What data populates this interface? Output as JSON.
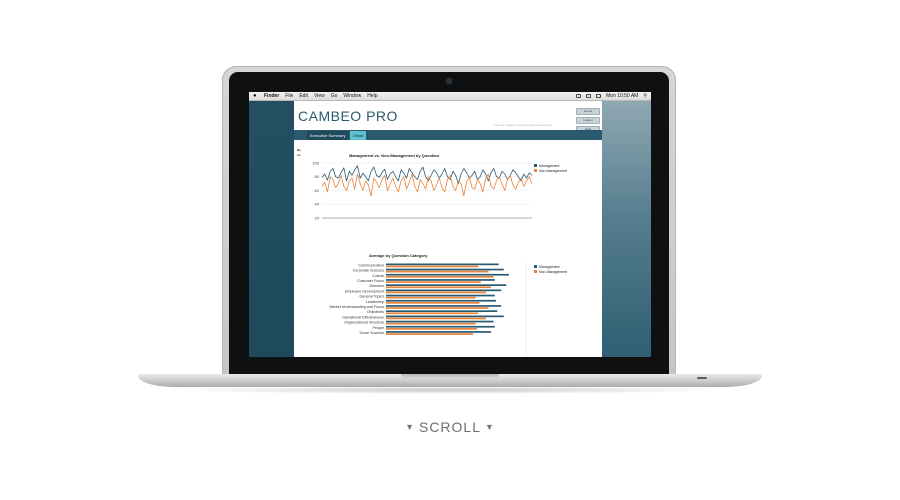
{
  "menubar": {
    "apple_icon": "apple-icon",
    "items": [
      "Finder",
      "File",
      "Edit",
      "View",
      "Go",
      "Window",
      "Help"
    ],
    "clock": "Mon 10:50 AM"
  },
  "app": {
    "title": "CAMBEO PRO",
    "logged_in_text": "You are logged in as frances@cambeo.com",
    "buttons": [
      "Home",
      "Logout",
      "Help"
    ],
    "tabs": [
      "Executive Summary",
      "Detail"
    ],
    "active_tab": "Detail",
    "side_labels": [
      "By",
      "Av"
    ]
  },
  "colors": {
    "management": "#2a5a70",
    "non_management": "#e8843c",
    "panel_dark": "#1f4a5c",
    "tab_active": "#5fc1cf"
  },
  "chart_data": [
    {
      "type": "line",
      "title": "Management vs. Non-Management by Question",
      "y_ticks": [
        20,
        40,
        60,
        80,
        100
      ],
      "ylim": [
        20,
        100
      ],
      "grid": true,
      "legend_position": "right",
      "series": [
        {
          "name": "Management",
          "color": "#2a5a70",
          "values": [
            79,
            84,
            75,
            88,
            92,
            80,
            78,
            86,
            93,
            74,
            88,
            82,
            90,
            96,
            78,
            85,
            80,
            74,
            88,
            94,
            82,
            79,
            86,
            91,
            76,
            84,
            88,
            80,
            74,
            90,
            85,
            78,
            92,
            86,
            80,
            76,
            88,
            94,
            80,
            74,
            82,
            90,
            86,
            78,
            84,
            92,
            80,
            76,
            88,
            82,
            70,
            84,
            92,
            86,
            78,
            82,
            88,
            76,
            80,
            90,
            84,
            74,
            86,
            92,
            80,
            78,
            88,
            84,
            76,
            82,
            90,
            86,
            80,
            74,
            84,
            78,
            86,
            82
          ]
        },
        {
          "name": "Non-Management",
          "color": "#e8843c",
          "values": [
            66,
            72,
            58,
            80,
            76,
            64,
            70,
            82,
            66,
            60,
            74,
            78,
            62,
            84,
            70,
            60,
            74,
            68,
            52,
            78,
            72,
            64,
            76,
            82,
            60,
            70,
            78,
            66,
            58,
            74,
            80,
            62,
            72,
            84,
            66,
            58,
            76,
            70,
            62,
            80,
            74,
            60,
            68,
            78,
            64,
            58,
            76,
            82,
            66,
            60,
            74,
            70,
            52,
            72,
            80,
            64,
            62,
            76,
            70,
            58,
            78,
            84,
            66,
            62,
            74,
            80,
            70,
            60,
            76,
            82,
            68,
            62,
            72,
            78,
            66,
            74,
            80,
            70
          ]
        }
      ]
    },
    {
      "type": "bar",
      "orientation": "horizontal",
      "title": "Average by Question Category",
      "legend_position": "right",
      "categories": [
        "Communication",
        "Corporate Success",
        "Culture",
        "Customer Focus",
        "Direction",
        "Employee Development",
        "General Topics",
        "Leadership",
        "Market Understanding and Focus",
        "Objectives",
        "Operational Effectiveness",
        "Organizational Structure",
        "People",
        "Score Success"
      ],
      "xlim": [
        0,
        100
      ],
      "series": [
        {
          "name": "Management",
          "color": "#2a5a70",
          "values": [
            88,
            92,
            96,
            85,
            94,
            90,
            85,
            86,
            90,
            87,
            92,
            84,
            85,
            82
          ]
        },
        {
          "name": "Non-Management",
          "color": "#e8843c",
          "values": [
            72,
            80,
            84,
            74,
            82,
            78,
            70,
            73,
            80,
            72,
            78,
            70,
            71,
            68
          ]
        }
      ]
    }
  ],
  "scroll_label": "SCROLL"
}
